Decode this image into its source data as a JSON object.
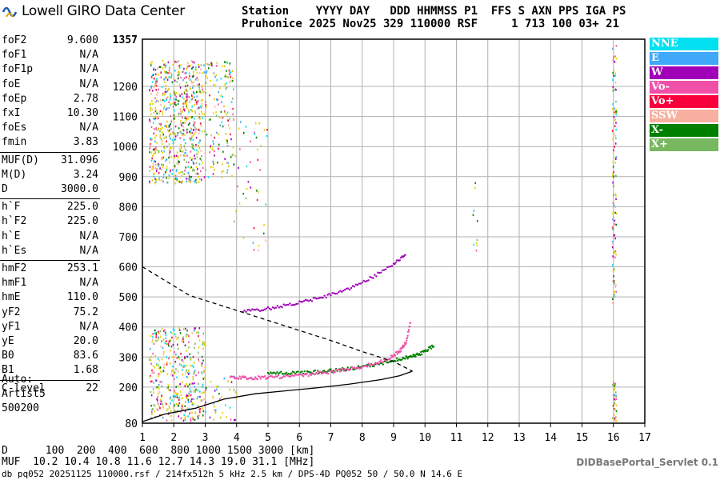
{
  "logo": {
    "text": "Lowell GIRO Data Center"
  },
  "header": {
    "line1": "Station    YYYY DAY   DDD HHMMSS P1  FFS S AXN PPS IGA PS",
    "line2": "Pruhonice 2025 Nov25 329 110000 RSF     1 713 100 03+ 21"
  },
  "params": [
    {
      "name": "foF2",
      "value": "9.600"
    },
    {
      "name": "foF1",
      "value": "N/A"
    },
    {
      "name": "foF1p",
      "value": "N/A"
    },
    {
      "name": "foE",
      "value": "N/A"
    },
    {
      "name": "foEp",
      "value": "2.78"
    },
    {
      "name": "fxI",
      "value": "10.30"
    },
    {
      "name": "foEs",
      "value": "N/A"
    },
    {
      "name": "fmin",
      "value": "3.83"
    },
    {
      "name": "MUF(D)",
      "value": "31.096"
    },
    {
      "name": "M(D)",
      "value": "3.24"
    },
    {
      "name": "D",
      "value": "3000.0"
    },
    {
      "name": "h`F",
      "value": "225.0"
    },
    {
      "name": "h`F2",
      "value": "225.0"
    },
    {
      "name": "h`E",
      "value": "N/A"
    },
    {
      "name": "h`Es",
      "value": "N/A"
    },
    {
      "name": "hmF2",
      "value": "253.1"
    },
    {
      "name": "hmF1",
      "value": "N/A"
    },
    {
      "name": "hmE",
      "value": "110.0"
    },
    {
      "name": "yF2",
      "value": "75.2"
    },
    {
      "name": "yF1",
      "value": "N/A"
    },
    {
      "name": "yE",
      "value": "20.0"
    },
    {
      "name": "B0",
      "value": "83.6"
    },
    {
      "name": "B1",
      "value": "1.68"
    },
    {
      "name": "C-level",
      "value": "22"
    }
  ],
  "auto": {
    "line1": "Auto:",
    "line2": "Artist5",
    "line3": "500200"
  },
  "legend": [
    {
      "label": "NNE",
      "color": "#00e0f0"
    },
    {
      "label": "E",
      "color": "#40a8f8"
    },
    {
      "label": "W",
      "color": "#a000b8"
    },
    {
      "label": "Vo-",
      "color": "#f050a8"
    },
    {
      "label": "Vo+",
      "color": "#f8003c"
    },
    {
      "label": "SSW",
      "color": "#f8b0a0"
    },
    {
      "label": "X-",
      "color": "#008000"
    },
    {
      "label": "X+",
      "color": "#78b860"
    }
  ],
  "chart_data": {
    "type": "scatter",
    "x_unit": "MHz",
    "y_unit": "km",
    "xlim": [
      1,
      17
    ],
    "ylim": [
      80,
      1357
    ],
    "x_ticks": [
      1,
      2,
      3,
      4,
      5,
      6,
      7,
      8,
      9,
      10,
      11,
      12,
      13,
      14,
      15,
      16,
      17
    ],
    "y_ticks": [
      80,
      200,
      300,
      400,
      500,
      600,
      700,
      800,
      900,
      1000,
      1100,
      1200,
      1357
    ],
    "grid": true,
    "legend_position": "right",
    "series": [
      {
        "name": "X-",
        "color": "#008000",
        "points": [
          [
            5.0,
            248
          ],
          [
            5.5,
            246
          ],
          [
            6.0,
            247
          ],
          [
            6.5,
            250
          ],
          [
            7.0,
            254
          ],
          [
            7.5,
            260
          ],
          [
            8.0,
            267
          ],
          [
            8.5,
            276
          ],
          [
            9.0,
            288
          ],
          [
            9.4,
            298
          ],
          [
            9.7,
            306
          ],
          [
            10.0,
            318
          ],
          [
            10.3,
            340
          ]
        ]
      },
      {
        "name": "Vo-",
        "color": "#f050a8",
        "points": [
          [
            3.8,
            232
          ],
          [
            4.2,
            231
          ],
          [
            4.6,
            231
          ],
          [
            5.0,
            232
          ],
          [
            5.5,
            235
          ],
          [
            6.0,
            239
          ],
          [
            6.5,
            244
          ],
          [
            7.0,
            251
          ],
          [
            7.5,
            259
          ],
          [
            8.0,
            268
          ],
          [
            8.5,
            281
          ],
          [
            8.9,
            298
          ],
          [
            9.2,
            320
          ],
          [
            9.4,
            350
          ],
          [
            9.55,
            420
          ]
        ]
      },
      {
        "name": "W",
        "color": "#a000b8",
        "points": [
          [
            4.2,
            452
          ],
          [
            4.8,
            458
          ],
          [
            5.4,
            468
          ],
          [
            6.0,
            480
          ],
          [
            6.6,
            496
          ],
          [
            7.2,
            513
          ],
          [
            7.8,
            537
          ],
          [
            8.4,
            570
          ],
          [
            9.0,
            610
          ],
          [
            9.4,
            640
          ]
        ]
      }
    ],
    "profile_solid": [
      [
        1.0,
        85
      ],
      [
        1.7,
        110
      ],
      [
        2.7,
        130
      ],
      [
        3.6,
        160
      ],
      [
        4.6,
        178
      ],
      [
        5.6,
        188
      ],
      [
        6.6,
        198
      ],
      [
        7.6,
        210
      ],
      [
        8.6,
        225
      ],
      [
        9.2,
        238
      ],
      [
        9.6,
        253
      ]
    ],
    "profile_dashed": [
      [
        1.0,
        600
      ],
      [
        2.5,
        505
      ],
      [
        4.0,
        455
      ],
      [
        5.5,
        405
      ],
      [
        7.0,
        355
      ],
      [
        8.0,
        318
      ],
      [
        9.0,
        285
      ],
      [
        9.6,
        253
      ]
    ]
  },
  "bottom": {
    "d_row": "D      100  200  400  600  800 1000 1500 3000 [km]",
    "muf_row": "MUF  10.2 10.4 10.8 11.6 12.7 14.3 19.0 31.1 [MHz]",
    "footer": "db pq052 20251125 110000.rsf / 214fx512h 5 kHz 2.5 km / DPS-4D PQ052 50 / 50.0 N 14.6 E",
    "servlet": "DIDBasePortal_Servlet 0.1"
  }
}
